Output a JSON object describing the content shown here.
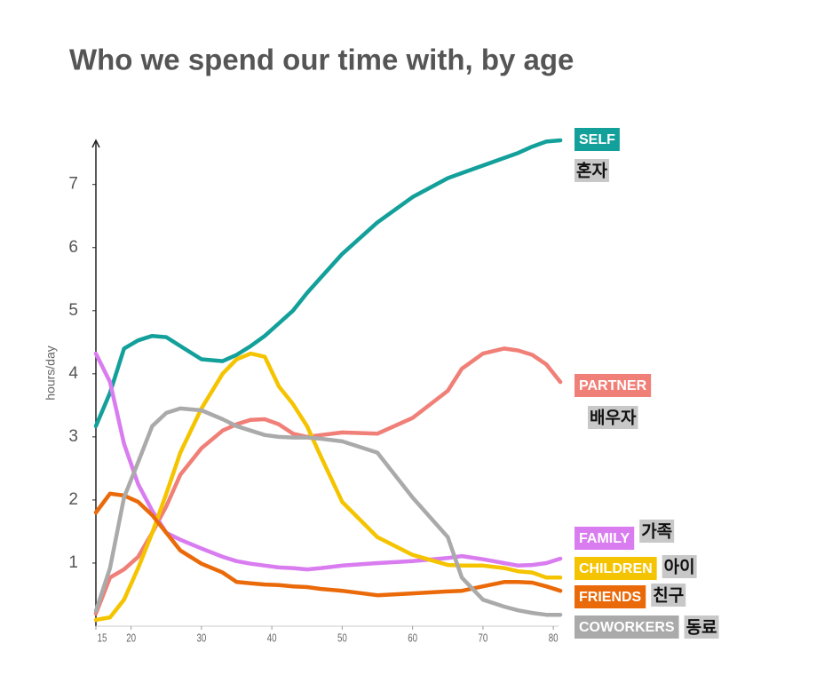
{
  "chart_data": {
    "type": "line",
    "title": "Who we spend our time with, by age",
    "y_label": "hours/day",
    "xlim": [
      15,
      82
    ],
    "xticks": [
      15,
      20,
      30,
      40,
      50,
      60,
      70,
      80
    ],
    "ylim": [
      0,
      7.7
    ],
    "yticks": [
      1,
      2,
      3,
      4,
      5,
      6,
      7
    ],
    "x": [
      15,
      17,
      19,
      21,
      23,
      25,
      27,
      30,
      33,
      35,
      37,
      39,
      41,
      43,
      45,
      47,
      50,
      55,
      60,
      65,
      67,
      70,
      73,
      75,
      77,
      79,
      81
    ],
    "series": [
      {
        "name": "SELF",
        "translation": "혼자",
        "color": "#13a09b",
        "values": [
          3.17,
          3.7,
          4.4,
          4.53,
          4.6,
          4.58,
          4.44,
          4.23,
          4.2,
          4.3,
          4.44,
          4.6,
          4.8,
          5.0,
          5.28,
          5.53,
          5.9,
          6.4,
          6.8,
          7.1,
          7.18,
          7.3,
          7.42,
          7.5,
          7.6,
          7.68,
          7.7
        ]
      },
      {
        "name": "PARTNER",
        "translation": "배우자",
        "color": "#f07f77",
        "values": [
          0.2,
          0.77,
          0.9,
          1.1,
          1.48,
          1.9,
          2.4,
          2.82,
          3.1,
          3.2,
          3.27,
          3.28,
          3.2,
          3.05,
          3.0,
          3.03,
          3.07,
          3.05,
          3.3,
          3.73,
          4.08,
          4.32,
          4.4,
          4.37,
          4.3,
          4.15,
          3.87
        ]
      },
      {
        "name": "FAMILY",
        "translation": "가족",
        "color": "#d97cf0",
        "values": [
          4.32,
          3.87,
          2.89,
          2.25,
          1.83,
          1.48,
          1.37,
          1.23,
          1.1,
          1.03,
          0.99,
          0.96,
          0.93,
          0.92,
          0.9,
          0.92,
          0.96,
          1.0,
          1.03,
          1.08,
          1.11,
          1.06,
          1.0,
          0.96,
          0.97,
          1.0,
          1.07
        ]
      },
      {
        "name": "CHILDREN",
        "translation": "아이",
        "color": "#f5c400",
        "values": [
          0.1,
          0.14,
          0.42,
          0.92,
          1.48,
          2.1,
          2.75,
          3.45,
          4.0,
          4.23,
          4.32,
          4.27,
          3.8,
          3.52,
          3.17,
          2.68,
          1.97,
          1.41,
          1.13,
          0.97,
          0.96,
          0.96,
          0.92,
          0.87,
          0.85,
          0.77,
          0.77
        ]
      },
      {
        "name": "FRIENDS",
        "translation": "친구",
        "color": "#ea6a0a",
        "values": [
          1.8,
          2.1,
          2.07,
          1.97,
          1.76,
          1.48,
          1.2,
          0.99,
          0.85,
          0.7,
          0.68,
          0.66,
          0.65,
          0.63,
          0.62,
          0.59,
          0.56,
          0.49,
          0.52,
          0.55,
          0.56,
          0.63,
          0.7,
          0.7,
          0.69,
          0.63,
          0.56
        ]
      },
      {
        "name": "COWORKERS",
        "translation": "동료",
        "color": "#aaaaaa",
        "values": [
          0.24,
          0.92,
          2.04,
          2.6,
          3.17,
          3.38,
          3.45,
          3.42,
          3.28,
          3.17,
          3.1,
          3.03,
          3.0,
          2.99,
          2.99,
          2.97,
          2.93,
          2.75,
          2.04,
          1.41,
          0.77,
          0.42,
          0.31,
          0.25,
          0.21,
          0.18,
          0.18
        ]
      }
    ]
  }
}
